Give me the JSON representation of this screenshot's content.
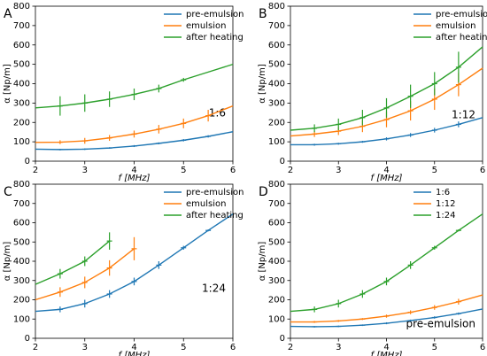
{
  "chart_data": [
    {
      "type": "line",
      "panel_label": "A",
      "annotation": "1:6",
      "x_label": "f [MHz]",
      "y_label": "α [Np/m]",
      "xlim": [
        2,
        6
      ],
      "ylim": [
        0,
        800
      ],
      "xticks": [
        2,
        3,
        4,
        5,
        6
      ],
      "yticks": [
        0,
        100,
        200,
        300,
        400,
        500,
        600,
        700,
        800
      ],
      "legend": "upper right",
      "series": [
        {
          "name": "pre-emulsion",
          "color": "#1f77b4",
          "x": [
            2,
            2.5,
            3,
            3.5,
            4,
            4.5,
            5,
            5.5,
            6
          ],
          "values": [
            62,
            60,
            62,
            68,
            78,
            92,
            108,
            128,
            152
          ],
          "errors": [
            null,
            4,
            4,
            4,
            5,
            5,
            6,
            6,
            null
          ]
        },
        {
          "name": "emulsion",
          "color": "#ff7f0e",
          "x": [
            2,
            2.5,
            3,
            3.5,
            4,
            4.5,
            5,
            5.5,
            6
          ],
          "values": [
            97,
            98,
            105,
            120,
            140,
            165,
            195,
            235,
            285
          ],
          "errors": [
            null,
            10,
            15,
            15,
            18,
            22,
            25,
            30,
            null
          ]
        },
        {
          "name": "after heating",
          "color": "#2ca02c",
          "x": [
            2,
            2.5,
            3,
            3.5,
            4,
            4.5,
            5,
            5.5,
            6
          ],
          "values": [
            275,
            285,
            300,
            320,
            345,
            375,
            420,
            460,
            500
          ],
          "errors": [
            null,
            50,
            45,
            40,
            30,
            20,
            10,
            null,
            null
          ]
        }
      ]
    },
    {
      "type": "line",
      "panel_label": "B",
      "annotation": "1:12",
      "x_label": "f [MHz]",
      "y_label": "α [Np/m]",
      "xlim": [
        2,
        6
      ],
      "ylim": [
        0,
        800
      ],
      "xticks": [
        2,
        3,
        4,
        5,
        6
      ],
      "yticks": [
        0,
        100,
        200,
        300,
        400,
        500,
        600,
        700,
        800
      ],
      "legend": "upper right",
      "series": [
        {
          "name": "pre-emulsion",
          "color": "#1f77b4",
          "x": [
            2,
            2.5,
            3,
            3.5,
            4,
            4.5,
            5,
            5.5,
            6
          ],
          "values": [
            85,
            85,
            90,
            100,
            115,
            135,
            160,
            190,
            225
          ],
          "errors": [
            null,
            5,
            5,
            5,
            8,
            10,
            12,
            15,
            null
          ]
        },
        {
          "name": "emulsion",
          "color": "#ff7f0e",
          "x": [
            2,
            2.5,
            3,
            3.5,
            4,
            4.5,
            5,
            5.5,
            6
          ],
          "values": [
            130,
            140,
            155,
            180,
            215,
            260,
            320,
            395,
            480
          ],
          "errors": [
            null,
            15,
            20,
            30,
            40,
            50,
            55,
            60,
            null
          ]
        },
        {
          "name": "after heating",
          "color": "#2ca02c",
          "x": [
            2,
            2.5,
            3,
            3.5,
            4,
            4.5,
            5,
            5.5,
            6
          ],
          "values": [
            160,
            170,
            190,
            225,
            275,
            335,
            400,
            485,
            590
          ],
          "errors": [
            null,
            20,
            30,
            40,
            50,
            60,
            60,
            80,
            null
          ]
        }
      ]
    },
    {
      "type": "line",
      "panel_label": "C",
      "annotation": "1:24",
      "x_label": "f [MHz]",
      "y_label": "α [Np/m]",
      "xlim": [
        2,
        6
      ],
      "ylim": [
        0,
        800
      ],
      "xticks": [
        2,
        3,
        4,
        5,
        6
      ],
      "yticks": [
        0,
        100,
        200,
        300,
        400,
        500,
        600,
        700,
        800
      ],
      "legend": "upper right",
      "series": [
        {
          "name": "pre-emulsion",
          "color": "#1f77b4",
          "x": [
            2,
            2.5,
            3,
            3.5,
            4,
            4.5,
            5,
            5.5,
            6
          ],
          "values": [
            140,
            150,
            180,
            230,
            295,
            380,
            470,
            560,
            645
          ],
          "errors": [
            null,
            15,
            20,
            20,
            20,
            20,
            10,
            5,
            null
          ]
        },
        {
          "name": "emulsion",
          "color": "#ff7f0e",
          "x": [
            2,
            2.5,
            3,
            3.5,
            4
          ],
          "values": [
            200,
            240,
            290,
            365,
            465
          ],
          "errors": [
            null,
            25,
            30,
            40,
            60
          ]
        },
        {
          "name": "after heating",
          "color": "#2ca02c",
          "x": [
            2,
            2.5,
            3,
            3.5
          ],
          "values": [
            280,
            335,
            400,
            505
          ],
          "errors": [
            null,
            25,
            25,
            45
          ]
        }
      ]
    },
    {
      "type": "line",
      "panel_label": "D",
      "annotation": "pre-emulsion",
      "x_label": "f [MHz]",
      "y_label": "α [Np/m]",
      "xlim": [
        2,
        6
      ],
      "ylim": [
        0,
        800
      ],
      "xticks": [
        2,
        3,
        4,
        5,
        6
      ],
      "yticks": [
        0,
        100,
        200,
        300,
        400,
        500,
        600,
        700,
        800
      ],
      "legend": "upper right",
      "series": [
        {
          "name": "1:6",
          "color": "#1f77b4",
          "x": [
            2,
            2.5,
            3,
            3.5,
            4,
            4.5,
            5,
            5.5,
            6
          ],
          "values": [
            62,
            60,
            62,
            68,
            78,
            92,
            108,
            128,
            152
          ],
          "errors": [
            null,
            4,
            4,
            4,
            5,
            5,
            6,
            6,
            null
          ]
        },
        {
          "name": "1:12",
          "color": "#ff7f0e",
          "x": [
            2,
            2.5,
            3,
            3.5,
            4,
            4.5,
            5,
            5.5,
            6
          ],
          "values": [
            85,
            85,
            90,
            100,
            115,
            135,
            160,
            190,
            225
          ],
          "errors": [
            null,
            5,
            5,
            5,
            8,
            10,
            12,
            15,
            null
          ]
        },
        {
          "name": "1:24",
          "color": "#2ca02c",
          "x": [
            2,
            2.5,
            3,
            3.5,
            4,
            4.5,
            5,
            5.5,
            6
          ],
          "values": [
            140,
            150,
            180,
            230,
            295,
            380,
            470,
            560,
            645
          ],
          "errors": [
            null,
            15,
            20,
            20,
            20,
            20,
            10,
            5,
            null
          ]
        }
      ]
    }
  ]
}
